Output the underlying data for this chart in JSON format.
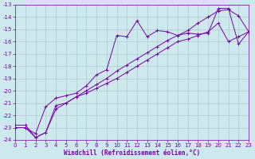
{
  "background_color": "#cde9ed",
  "grid_color": "#aacccc",
  "line_color": "#7700aa",
  "xlabel": "Windchill (Refroidissement éolien,°C)",
  "xlim": [
    0,
    23
  ],
  "ylim": [
    -24,
    -13
  ],
  "xticks": [
    0,
    1,
    2,
    3,
    4,
    5,
    6,
    7,
    8,
    9,
    10,
    11,
    12,
    13,
    14,
    15,
    16,
    17,
    18,
    19,
    20,
    21,
    22,
    23
  ],
  "yticks": [
    -13,
    -14,
    -15,
    -16,
    -17,
    -18,
    -19,
    -20,
    -21,
    -22,
    -23,
    -24
  ],
  "series": [
    {
      "x": [
        0,
        1,
        2,
        3,
        4,
        5,
        6,
        7,
        8,
        9,
        10,
        11,
        12,
        13,
        14,
        15,
        16,
        17,
        18,
        19,
        20,
        21,
        22,
        23
      ],
      "y": [
        -23.0,
        -23.0,
        -23.5,
        -21.3,
        -20.6,
        -20.4,
        -20.2,
        -19.6,
        -18.7,
        -18.3,
        -15.5,
        -15.6,
        -14.3,
        -15.6,
        -15.1,
        -15.2,
        -15.5,
        -15.3,
        -15.4,
        -15.3,
        -13.3,
        -13.3,
        -16.2,
        -15.2
      ]
    },
    {
      "x": [
        0,
        1,
        2,
        3,
        4,
        5,
        6,
        7,
        8,
        9,
        10,
        11,
        12,
        13,
        14,
        15,
        16,
        17,
        18,
        19,
        20,
        21,
        22,
        23
      ],
      "y": [
        -23.0,
        -23.0,
        -23.8,
        -23.4,
        -21.2,
        -21.0,
        -20.5,
        -20.2,
        -19.8,
        -19.4,
        -19.0,
        -18.5,
        -18.0,
        -17.5,
        -17.0,
        -16.5,
        -16.0,
        -15.8,
        -15.5,
        -15.2,
        -14.5,
        -16.0,
        -15.6,
        -15.2
      ]
    },
    {
      "x": [
        0,
        1,
        2,
        3,
        4,
        5,
        6,
        7,
        8,
        9,
        10,
        11,
        12,
        13,
        14,
        15,
        16,
        17,
        18,
        19,
        20,
        21,
        22,
        23
      ],
      "y": [
        -22.8,
        -22.8,
        -23.8,
        -23.4,
        -21.5,
        -21.0,
        -20.5,
        -20.0,
        -19.5,
        -19.0,
        -18.4,
        -17.9,
        -17.4,
        -16.9,
        -16.4,
        -15.9,
        -15.5,
        -15.1,
        -14.5,
        -14.0,
        -13.5,
        -13.4,
        -13.9,
        -15.2
      ]
    }
  ],
  "xlabel_fontsize": 5.5,
  "tick_fontsize": 5.0
}
